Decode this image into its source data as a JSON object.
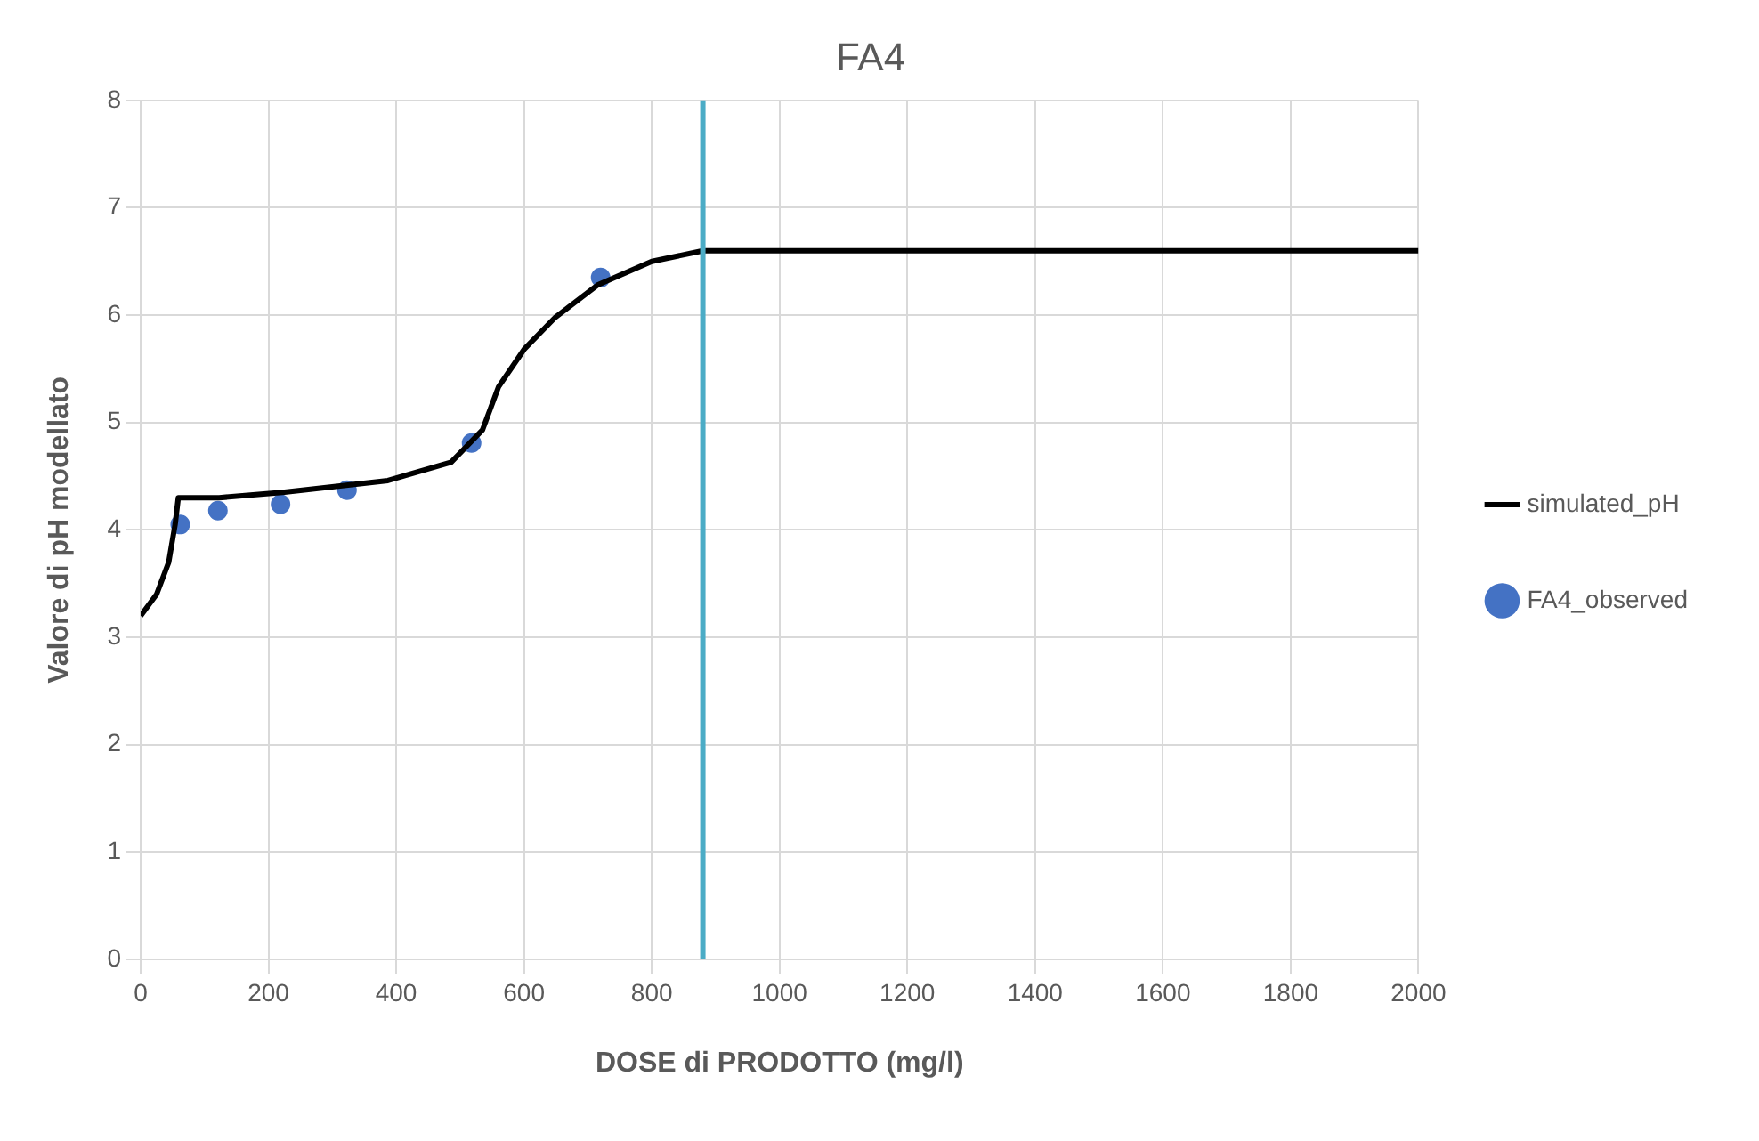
{
  "chart_data": {
    "type": "line",
    "title": "FA4",
    "xlabel": "DOSE di PRODOTTO (mg/l)",
    "ylabel": "Valore di pH modellato",
    "xlim": [
      0,
      2000
    ],
    "xticks": [
      0,
      200,
      400,
      600,
      800,
      1000,
      1200,
      1400,
      1600,
      1800,
      2000
    ],
    "ylim": [
      0,
      8
    ],
    "yticks": [
      0,
      1,
      2,
      3,
      4,
      5,
      6,
      7,
      8
    ],
    "grid": true,
    "legend": "right",
    "series": [
      {
        "name": "simulated_pH",
        "color": "#000000",
        "marker": "none",
        "x": [
          0,
          25,
          44,
          54,
          59,
          123,
          222,
          387,
          486,
          535,
          560,
          600,
          649,
          715,
          800,
          880,
          2000
        ],
        "values": [
          3.2,
          3.4,
          3.7,
          4.05,
          4.3,
          4.3,
          4.35,
          4.46,
          4.63,
          4.93,
          5.33,
          5.68,
          5.98,
          6.28,
          6.5,
          6.6,
          6.6
        ]
      },
      {
        "name": "FA4_observed",
        "type": "scatter",
        "color": "#4472c4",
        "marker": "circle",
        "x": [
          62,
          121,
          219,
          323,
          518,
          720
        ],
        "values": [
          4.05,
          4.18,
          4.24,
          4.37,
          4.81,
          6.35
        ]
      }
    ],
    "ref_lines": [
      {
        "axis": "x",
        "value": 880,
        "color": "#4bacc6"
      }
    ]
  }
}
